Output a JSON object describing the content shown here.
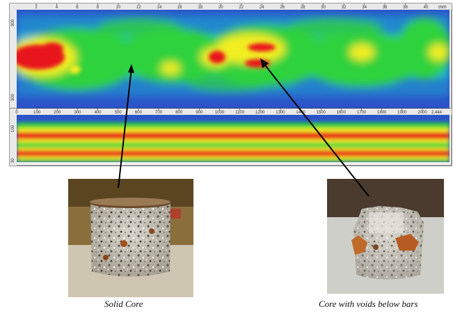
{
  "top_axis": {
    "ticks": [
      "2",
      "4",
      "6",
      "8",
      "10",
      "12",
      "14",
      "16",
      "18",
      "20",
      "22",
      "24",
      "26",
      "28",
      "30",
      "32",
      "34",
      "36",
      "38",
      "40"
    ],
    "unit": "mm"
  },
  "top_left_axis": {
    "ticks": [
      "300",
      "",
      "300"
    ]
  },
  "bottom_axis": {
    "ticks": [
      "0",
      "100",
      "200",
      "300",
      "400",
      "500",
      "600",
      "700",
      "800",
      "900",
      "1000",
      "1100",
      "1200",
      "1300",
      "1400",
      "1500",
      "1600",
      "1700",
      "1800",
      "1900",
      "2000"
    ],
    "end_label": "2,444"
  },
  "bottom_left_axis": {
    "ticks": [
      "100",
      "30"
    ]
  },
  "colors": {
    "red": "#e8191b",
    "yellow": "#f2ee21",
    "green": "#2fd23c",
    "cyan": "#1fb6d6",
    "blue": "#2b54c9"
  },
  "captions": {
    "left": "Solid Core",
    "right": "Core with voids below bars"
  }
}
